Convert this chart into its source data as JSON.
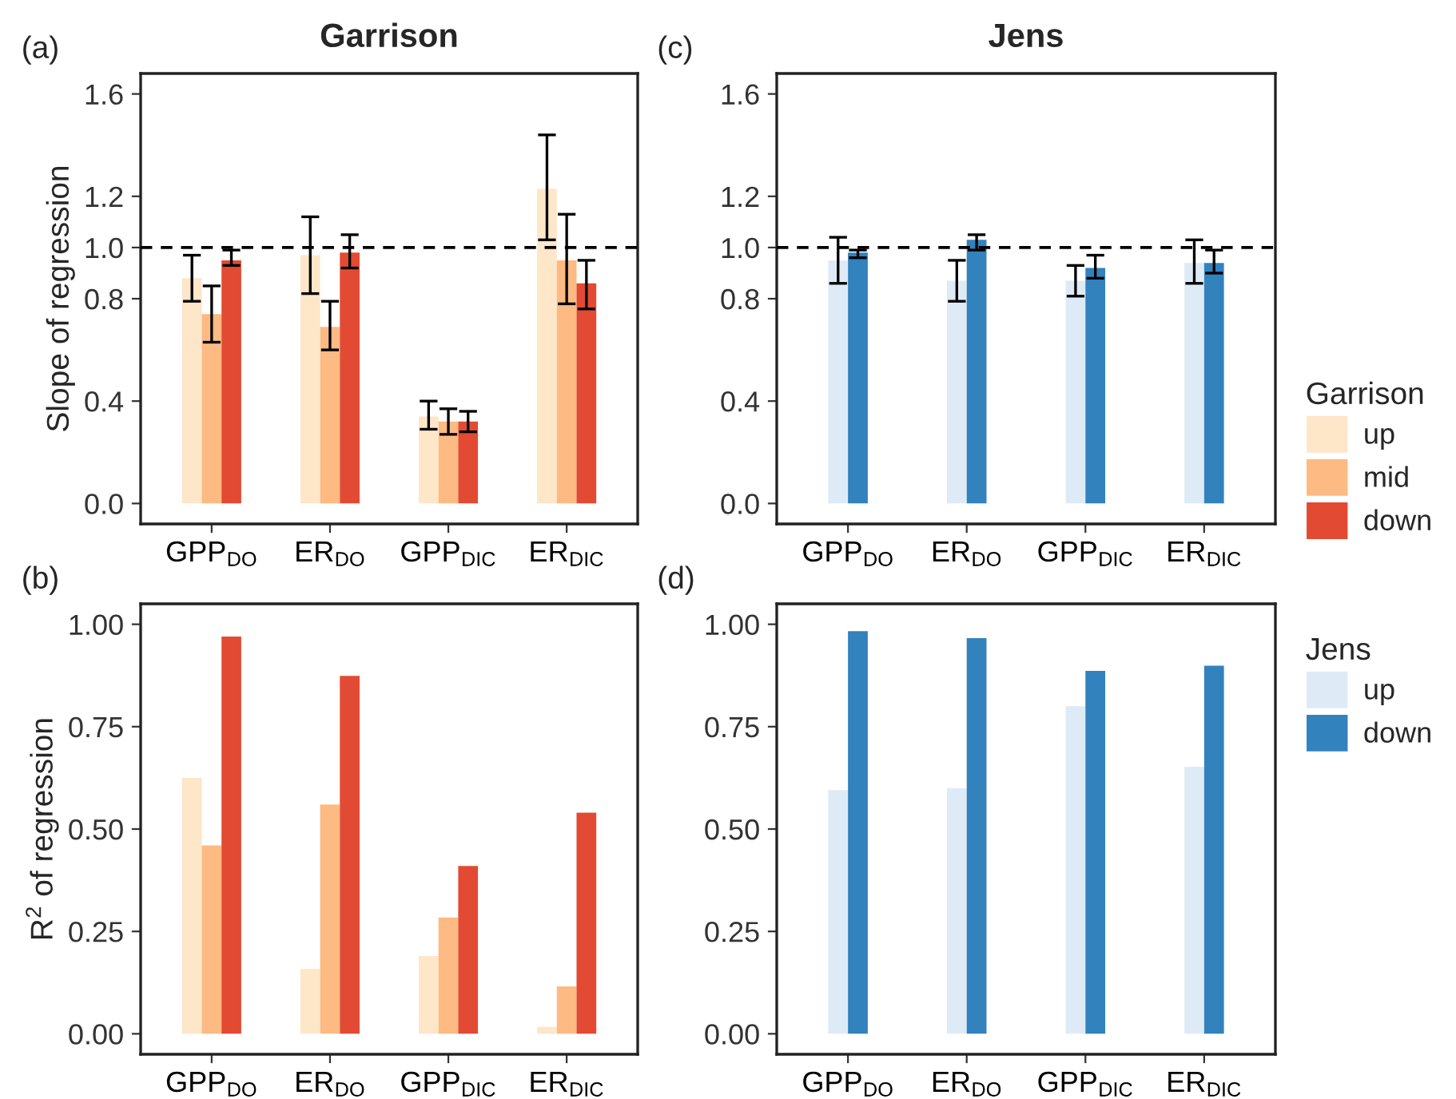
{
  "chart_data": [
    {
      "type": "bar",
      "title": "Garrison",
      "ylabel": "Slope of regression",
      "legend_title": "Garrison",
      "legend": "right",
      "annotations": [
        "(a)"
      ],
      "categories": [
        "GPP$_{DO}$",
        "ER$_{DO}$",
        "GPP$_{DIC}$",
        "ER$_{DIC}$"
      ],
      "ylim": [
        -0.08,
        1.68
      ],
      "yticks": [
        {
          "value": 0,
          "label": "0.0"
        },
        0.4,
        0.8,
        {
          "value": 1,
          "label": "1.0"
        },
        1.2,
        1.6
      ],
      "ref_lines": [
        {
          "axis": "y",
          "value": 1.0,
          "color": "#000000",
          "line_style": "dashed"
        }
      ],
      "series": [
        {
          "name": "up",
          "color": "#fee6c9",
          "values": [
            0.88,
            0.97,
            0.34,
            1.23
          ],
          "errors": [
            [
              0.79,
              0.97
            ],
            [
              0.82,
              1.12
            ],
            [
              0.29,
              0.4
            ],
            [
              1.03,
              1.44
            ]
          ]
        },
        {
          "name": "mid",
          "color": "#fdba82",
          "values": [
            0.74,
            0.69,
            0.32,
            0.95
          ],
          "errors": [
            [
              0.63,
              0.85
            ],
            [
              0.6,
              0.79
            ],
            [
              0.27,
              0.37
            ],
            [
              0.78,
              1.13
            ]
          ]
        },
        {
          "name": "down",
          "color": "#e34a33",
          "values": [
            0.95,
            0.98,
            0.32,
            0.86
          ],
          "errors": [
            [
              0.93,
              0.99
            ],
            [
              0.92,
              1.05
            ],
            [
              0.28,
              0.36
            ],
            [
              0.76,
              0.95
            ]
          ]
        }
      ]
    },
    {
      "type": "bar",
      "ylabel": "R$^{2}$ of regression",
      "annotations": [
        "(b)"
      ],
      "categories": [
        "GPP$_{DO}$",
        "ER$_{DO}$",
        "GPP$_{DIC}$",
        "ER$_{DIC}$"
      ],
      "ylim": [
        -0.05,
        1.05
      ],
      "yticks": [
        {
          "value": 0,
          "label": "0.00"
        },
        0.25,
        {
          "value": 0.5,
          "label": "0.50"
        },
        0.75,
        {
          "value": 1,
          "label": "1.00"
        }
      ],
      "series": [
        {
          "color": "#fee6c9",
          "values": [
            0.625,
            0.158,
            0.19,
            0.017
          ]
        },
        {
          "color": "#fdba82",
          "values": [
            0.46,
            0.56,
            0.284,
            0.116
          ]
        },
        {
          "color": "#e34a33",
          "values": [
            0.97,
            0.874,
            0.41,
            0.54
          ]
        }
      ]
    },
    {
      "type": "bar",
      "title": "Jens",
      "legend_title": "Jens",
      "legend": "right",
      "annotations": [
        "(c)"
      ],
      "categories": [
        "GPP$_{DO}$",
        "ER$_{DO}$",
        "GPP$_{DIC}$",
        "ER$_{DIC}$"
      ],
      "ylim": [
        -0.08,
        1.68
      ],
      "yticks": [
        {
          "value": 0,
          "label": "0.0"
        },
        0.4,
        0.8,
        {
          "value": 1,
          "label": "1.0"
        },
        1.2,
        1.6
      ],
      "ref_lines": [
        {
          "axis": "y",
          "value": 1.0,
          "color": "#000000",
          "line_style": "dashed"
        }
      ],
      "series": [
        {
          "name": "up",
          "color": "#deebf7",
          "values": [
            0.95,
            0.87,
            0.87,
            0.94
          ],
          "errors": [
            [
              0.86,
              1.04
            ],
            [
              0.79,
              0.95
            ],
            [
              0.81,
              0.93
            ],
            [
              0.86,
              1.03
            ]
          ]
        },
        {
          "name": "down",
          "color": "#3182bd",
          "values": [
            0.98,
            1.03,
            0.92,
            0.94
          ],
          "errors": [
            [
              0.96,
              0.99
            ],
            [
              0.99,
              1.05
            ],
            [
              0.88,
              0.97
            ],
            [
              0.9,
              0.99
            ]
          ]
        }
      ]
    },
    {
      "type": "bar",
      "annotations": [
        "(d)"
      ],
      "categories": [
        "GPP$_{DO}$",
        "ER$_{DO}$",
        "GPP$_{DIC}$",
        "ER$_{DIC}$"
      ],
      "ylim": [
        -0.05,
        1.05
      ],
      "yticks": [
        {
          "value": 0,
          "label": "0.00"
        },
        0.25,
        {
          "value": 0.5,
          "label": "0.50"
        },
        0.75,
        {
          "value": 1,
          "label": "1.00"
        }
      ],
      "series": [
        {
          "color": "#deebf7",
          "values": [
            0.595,
            0.6,
            0.8,
            0.652
          ]
        },
        {
          "color": "#3182bd",
          "values": [
            0.983,
            0.966,
            0.886,
            0.899
          ]
        }
      ]
    }
  ]
}
